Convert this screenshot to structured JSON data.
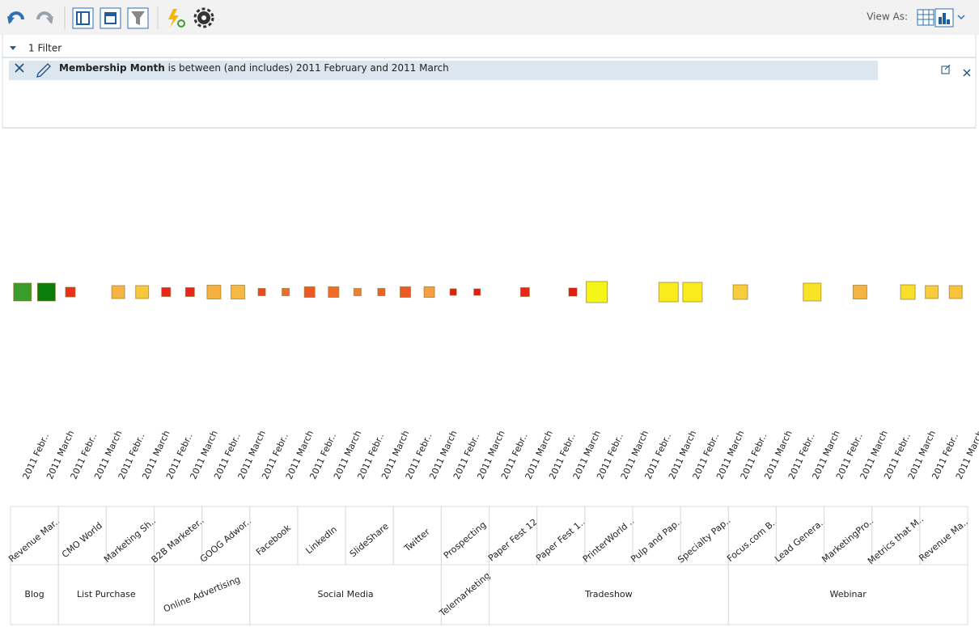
{
  "toolbar": {
    "view_as": "View As:"
  },
  "filter": {
    "count_label": "1 Filter",
    "field": "Membership Month",
    "condition": "is between (and includes) 2011 February and 2011 March"
  },
  "chart_data": {
    "type": "heatmap",
    "groups": [
      {
        "name": "Blog",
        "items": [
          {
            "name": "Revenue Mar..",
            "periods": [
              "2011 Febr..",
              "2011 March"
            ],
            "values": [
              22,
              22
            ],
            "colors": [
              "#3a9c2a",
              "#0b7d0b"
            ]
          }
        ]
      },
      {
        "name": "List Purchase",
        "items": [
          {
            "name": "CMO World",
            "periods": [
              "2011 Febr..",
              "2011 March"
            ],
            "values": [
              12,
              null
            ],
            "colors": [
              "#e8321a",
              null
            ]
          },
          {
            "name": "Marketing Sh..",
            "periods": [
              "2011 Febr..",
              "2011 March"
            ],
            "values": [
              16,
              16
            ],
            "colors": [
              "#f5b343",
              "#f8c83a"
            ]
          }
        ]
      },
      {
        "name": "Online Advertising",
        "items": [
          {
            "name": "B2B Marketer..",
            "periods": [
              "2011 Febr..",
              "2011 March"
            ],
            "values": [
              11,
              11
            ],
            "colors": [
              "#e8261a",
              "#e8261a"
            ]
          },
          {
            "name": "GOOG Adwor..",
            "periods": [
              "2011 Febr..",
              "2011 March"
            ],
            "values": [
              17,
              17
            ],
            "colors": [
              "#f5b040",
              "#f5b843"
            ]
          }
        ]
      },
      {
        "name": "Social Media",
        "items": [
          {
            "name": "Facebook",
            "periods": [
              "2011 Febr..",
              "2011 March"
            ],
            "values": [
              9,
              9
            ],
            "colors": [
              "#eb4a1f",
              "#ef6a2b"
            ]
          },
          {
            "name": "LinkedIn",
            "periods": [
              "2011 Febr..",
              "2011 March"
            ],
            "values": [
              13,
              13
            ],
            "colors": [
              "#ee5a25",
              "#f06a2a"
            ]
          },
          {
            "name": "SlideShare",
            "periods": [
              "2011 Febr..",
              "2011 March"
            ],
            "values": [
              9,
              9
            ],
            "colors": [
              "#f0802f",
              "#ee6228"
            ]
          },
          {
            "name": "Twitter",
            "periods": [
              "2011 Febr..",
              "2011 March"
            ],
            "values": [
              13,
              13
            ],
            "colors": [
              "#ee5a25",
              "#f5a040"
            ]
          }
        ]
      },
      {
        "name": "Telemarketing",
        "items": [
          {
            "name": "Prospecting",
            "periods": [
              "2011 Febr..",
              "2011 March"
            ],
            "values": [
              8,
              8
            ],
            "colors": [
              "#e51c10",
              "#e51c10"
            ]
          }
        ]
      },
      {
        "name": "Tradeshow",
        "items": [
          {
            "name": "Paper Fest 12",
            "periods": [
              "2011 Febr..",
              "2011 March"
            ],
            "values": [
              null,
              11
            ],
            "colors": [
              null,
              "#e8261a"
            ]
          },
          {
            "name": "Paper Fest 1..",
            "periods": [
              "2011 Febr..",
              "2011 March"
            ],
            "values": [
              null,
              10
            ],
            "colors": [
              null,
              "#e51c10"
            ]
          },
          {
            "name": "PrinterWorld ..",
            "periods": [
              "2011 Febr..",
              "2011 March"
            ],
            "values": [
              26,
              null
            ],
            "colors": [
              "#f5f51a",
              null
            ]
          },
          {
            "name": "Pulp and Pap..",
            "periods": [
              "2011 Febr..",
              "2011 March"
            ],
            "values": [
              null,
              24
            ],
            "colors": [
              null,
              "#f8ec1c"
            ]
          },
          {
            "name": "Specialty Pap..",
            "periods": [
              "2011 Febr..",
              "2011 March"
            ],
            "values": [
              24,
              null
            ],
            "colors": [
              "#f8ec1c",
              null
            ]
          }
        ]
      },
      {
        "name": "Webinar",
        "items": [
          {
            "name": "Focus.com B..",
            "periods": [
              "2011 Febr..",
              "2011 March"
            ],
            "values": [
              18,
              null
            ],
            "colors": [
              "#f8cc3a",
              null
            ]
          },
          {
            "name": "Lead Genera..",
            "periods": [
              "2011 Febr..",
              "2011 March"
            ],
            "values": [
              null,
              22
            ],
            "colors": [
              null,
              "#f8e424"
            ]
          },
          {
            "name": "MarketingPro..",
            "periods": [
              "2011 Febr..",
              "2011 March"
            ],
            "values": [
              null,
              17
            ],
            "colors": [
              null,
              "#f5b343"
            ]
          },
          {
            "name": "Metrics that M..",
            "periods": [
              "2011 Febr..",
              "2011 March"
            ],
            "values": [
              null,
              18
            ],
            "colors": [
              null,
              "#f8e02a"
            ]
          },
          {
            "name": "Revenue Ma..",
            "periods": [
              "2011 Febr..",
              "2011 March"
            ],
            "values": [
              16,
              16
            ],
            "colors": [
              "#f8cc3a",
              "#f8c23a"
            ]
          }
        ]
      }
    ]
  }
}
